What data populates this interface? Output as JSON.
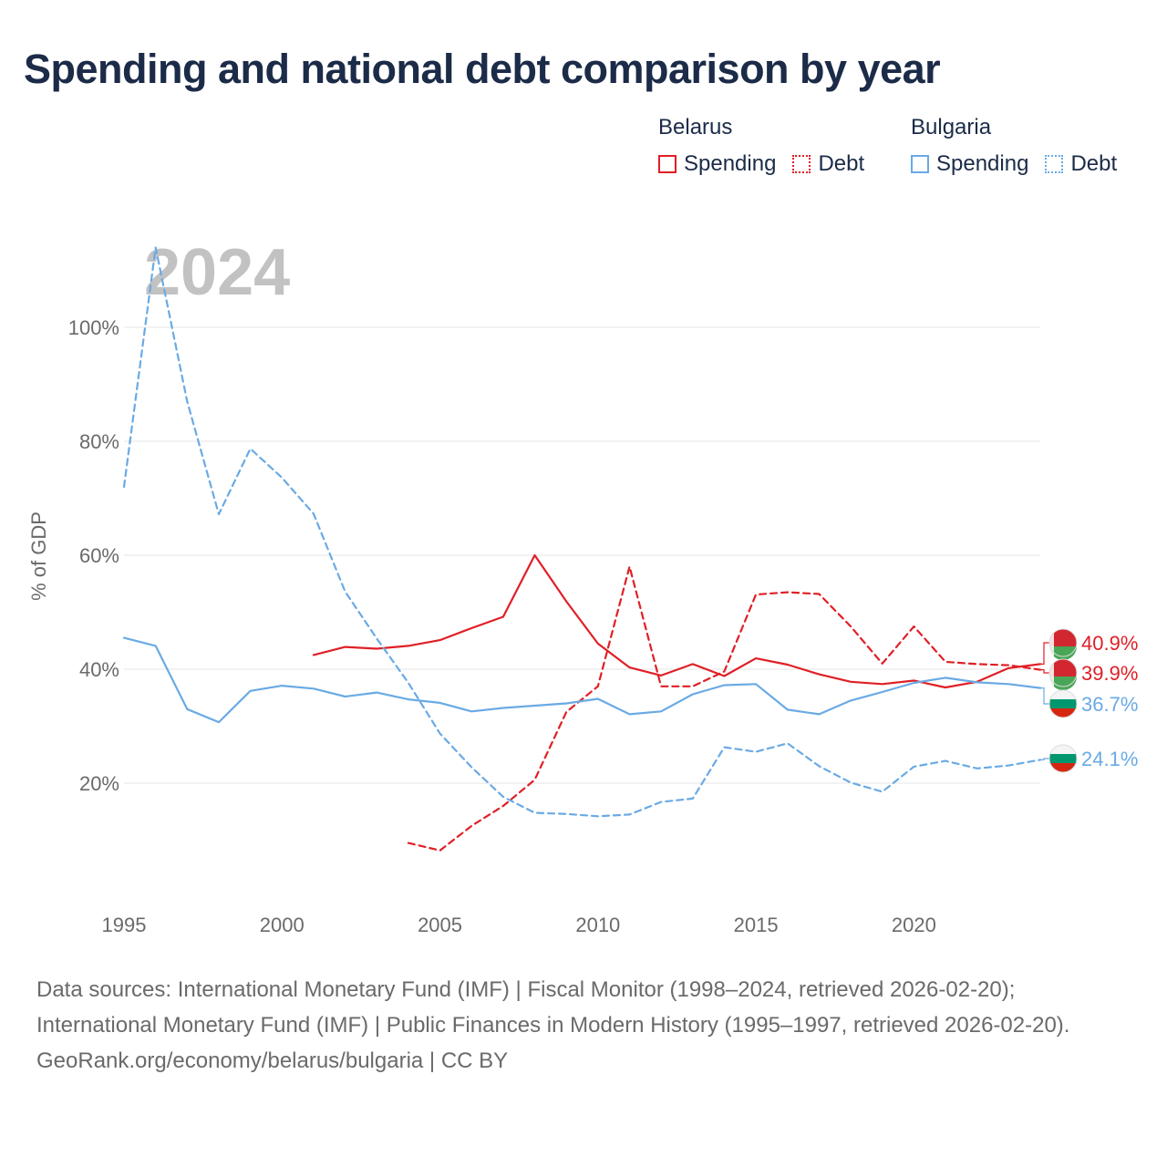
{
  "title": "Spending and national debt comparison by year",
  "legend": {
    "belarus": {
      "name": "Belarus",
      "spending": "Spending",
      "debt": "Debt"
    },
    "bulgaria": {
      "name": "Bulgaria",
      "spending": "Spending",
      "debt": "Debt"
    }
  },
  "colors": {
    "belarus": "#e01f26",
    "bulgaria": "#6aaae4"
  },
  "footer": {
    "sources": "Data sources: International Monetary Fund (IMF) | Fiscal Monitor (1998–2024, retrieved 2026-02-20); International Monetary Fund (IMF) | Public Finances in Modern History (1995–1997, retrieved 2026-02-20).",
    "credit": "GeoRank.org/economy/belarus/bulgaria | CC BY"
  },
  "chart_data": {
    "type": "line",
    "year_label": "2024",
    "ylabel": "% of GDP",
    "xlim": [
      1995,
      2024
    ],
    "ylim": [
      0,
      115
    ],
    "x_ticks": [
      1995,
      2000,
      2005,
      2010,
      2015,
      2020
    ],
    "y_ticks": [
      20,
      40,
      60,
      80,
      100
    ],
    "y_tick_labels": [
      "20%",
      "40%",
      "60%",
      "80%",
      "100%"
    ],
    "series": [
      {
        "name": "Belarus Spending",
        "country": "belarus",
        "style": "solid",
        "x": [
          2001,
          2002,
          2003,
          2004,
          2005,
          2006,
          2007,
          2008,
          2009,
          2010,
          2011,
          2012,
          2013,
          2014,
          2015,
          2016,
          2017,
          2018,
          2019,
          2020,
          2021,
          2022,
          2023,
          2024
        ],
        "values": [
          42.5,
          43.9,
          43.6,
          44.1,
          45.1,
          47.2,
          49.2,
          60.0,
          51.9,
          44.5,
          40.3,
          38.9,
          40.9,
          38.8,
          41.9,
          40.8,
          39.1,
          37.8,
          37.4,
          38.0,
          36.8,
          37.8,
          40.2,
          40.9
        ],
        "end_label": "40.9%"
      },
      {
        "name": "Belarus Debt",
        "country": "belarus",
        "style": "dashed",
        "x": [
          2004,
          2005,
          2006,
          2007,
          2008,
          2009,
          2010,
          2011,
          2012,
          2013,
          2014,
          2015,
          2016,
          2017,
          2018,
          2019,
          2020,
          2021,
          2022,
          2023,
          2024
        ],
        "values": [
          9.5,
          8.2,
          12.5,
          16.0,
          20.6,
          32.5,
          37.0,
          58.0,
          37.0,
          37.0,
          39.6,
          53.1,
          53.5,
          53.2,
          47.5,
          41.0,
          47.5,
          41.3,
          40.9,
          40.7,
          39.9
        ],
        "end_label": "39.9%"
      },
      {
        "name": "Bulgaria Spending",
        "country": "bulgaria",
        "style": "solid",
        "x": [
          1995,
          1996,
          1997,
          1998,
          1999,
          2000,
          2001,
          2002,
          2003,
          2004,
          2005,
          2006,
          2007,
          2008,
          2009,
          2010,
          2011,
          2012,
          2013,
          2014,
          2015,
          2016,
          2017,
          2018,
          2019,
          2020,
          2021,
          2022,
          2023,
          2024
        ],
        "values": [
          45.5,
          44.1,
          33.0,
          30.7,
          36.2,
          37.1,
          36.6,
          35.2,
          35.9,
          34.7,
          34.1,
          32.6,
          33.2,
          33.6,
          34.0,
          34.8,
          32.1,
          32.6,
          35.6,
          37.2,
          37.4,
          32.9,
          32.1,
          34.5,
          36.0,
          37.6,
          38.5,
          37.7,
          37.4,
          36.7
        ],
        "end_label": "36.7%"
      },
      {
        "name": "Bulgaria Debt",
        "country": "bulgaria",
        "style": "dashed",
        "x": [
          1995,
          1996,
          1997,
          1998,
          1999,
          2000,
          2001,
          2002,
          2003,
          2004,
          2005,
          2006,
          2007,
          2008,
          2009,
          2010,
          2011,
          2012,
          2013,
          2014,
          2015,
          2016,
          2017,
          2018,
          2019,
          2020,
          2021,
          2022,
          2023,
          2024
        ],
        "values": [
          72.0,
          114.0,
          87.0,
          67.2,
          78.7,
          73.6,
          67.3,
          53.6,
          45.4,
          37.6,
          28.7,
          22.8,
          17.6,
          14.8,
          14.6,
          14.2,
          14.5,
          16.7,
          17.3,
          26.3,
          25.5,
          27.0,
          23.0,
          20.1,
          18.5,
          22.9,
          23.9,
          22.6,
          23.1,
          24.1
        ],
        "end_label": "24.1%"
      }
    ]
  }
}
